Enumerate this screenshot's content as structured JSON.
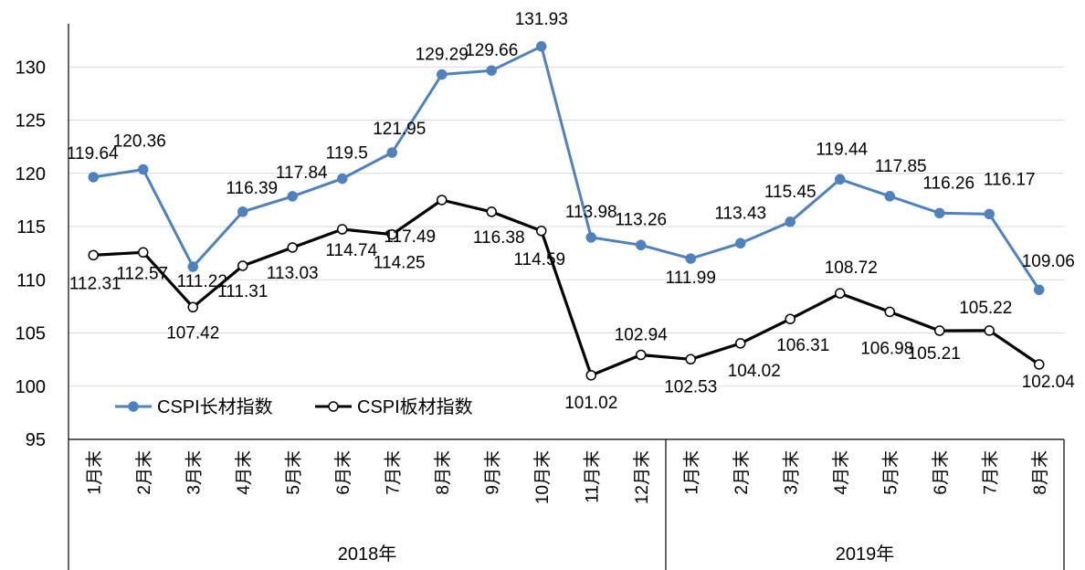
{
  "chart_data": {
    "type": "line",
    "categories": [
      "1月末",
      "2月末",
      "3月末",
      "4月末",
      "5月末",
      "6月末",
      "7月末",
      "8月末",
      "9月末",
      "10月末",
      "11月末",
      "12月末",
      "1月末",
      "2月末",
      "3月末",
      "4月末",
      "5月末",
      "6月末",
      "7月末",
      "8月末"
    ],
    "groups": [
      {
        "label": "2018年",
        "count": 12
      },
      {
        "label": "2019年",
        "count": 8
      }
    ],
    "series": [
      {
        "name": "CSPI长材指数",
        "color": "#4f81bd",
        "marker": "filled-circle",
        "values": [
          119.64,
          120.36,
          111.22,
          116.39,
          117.84,
          119.5,
          121.95,
          129.29,
          129.66,
          131.93,
          113.98,
          113.26,
          111.99,
          113.43,
          115.45,
          119.44,
          117.85,
          116.26,
          116.17,
          109.06
        ],
        "labels": [
          "119.64",
          "120.36",
          "111.22",
          "116.39",
          "117.84",
          "119.5",
          "121.95",
          "129.29",
          "129.66",
          "131.93",
          "113.98",
          "113.26",
          "111.99",
          "113.43",
          "115.45",
          "119.44",
          "117.85",
          "116.26",
          "116.17",
          "109.06"
        ]
      },
      {
        "name": "CSPI板材指数",
        "color": "#000000",
        "marker": "open-circle",
        "values": [
          112.31,
          112.57,
          107.42,
          111.31,
          113.03,
          114.74,
          114.25,
          117.49,
          116.38,
          114.59,
          101.02,
          102.94,
          102.53,
          104.02,
          106.31,
          108.72,
          106.98,
          105.21,
          105.22,
          102.04
        ],
        "labels": [
          "112.31",
          "112.57",
          "107.42",
          "111.31",
          "113.03",
          "114.74",
          "114.25",
          "117.49",
          "116.38",
          "114.59",
          "101.02",
          "102.94",
          "102.53",
          "104.02",
          "106.31",
          "108.72",
          "106.98",
          "105.21",
          "105.22",
          "102.04"
        ]
      }
    ],
    "ylim": [
      95,
      135
    ],
    "yticks": [
      "95",
      "100",
      "105",
      "110",
      "115",
      "120",
      "125",
      "130"
    ],
    "grid": true,
    "legend_position": "bottom-left",
    "title": "",
    "xlabel": "",
    "ylabel": ""
  }
}
